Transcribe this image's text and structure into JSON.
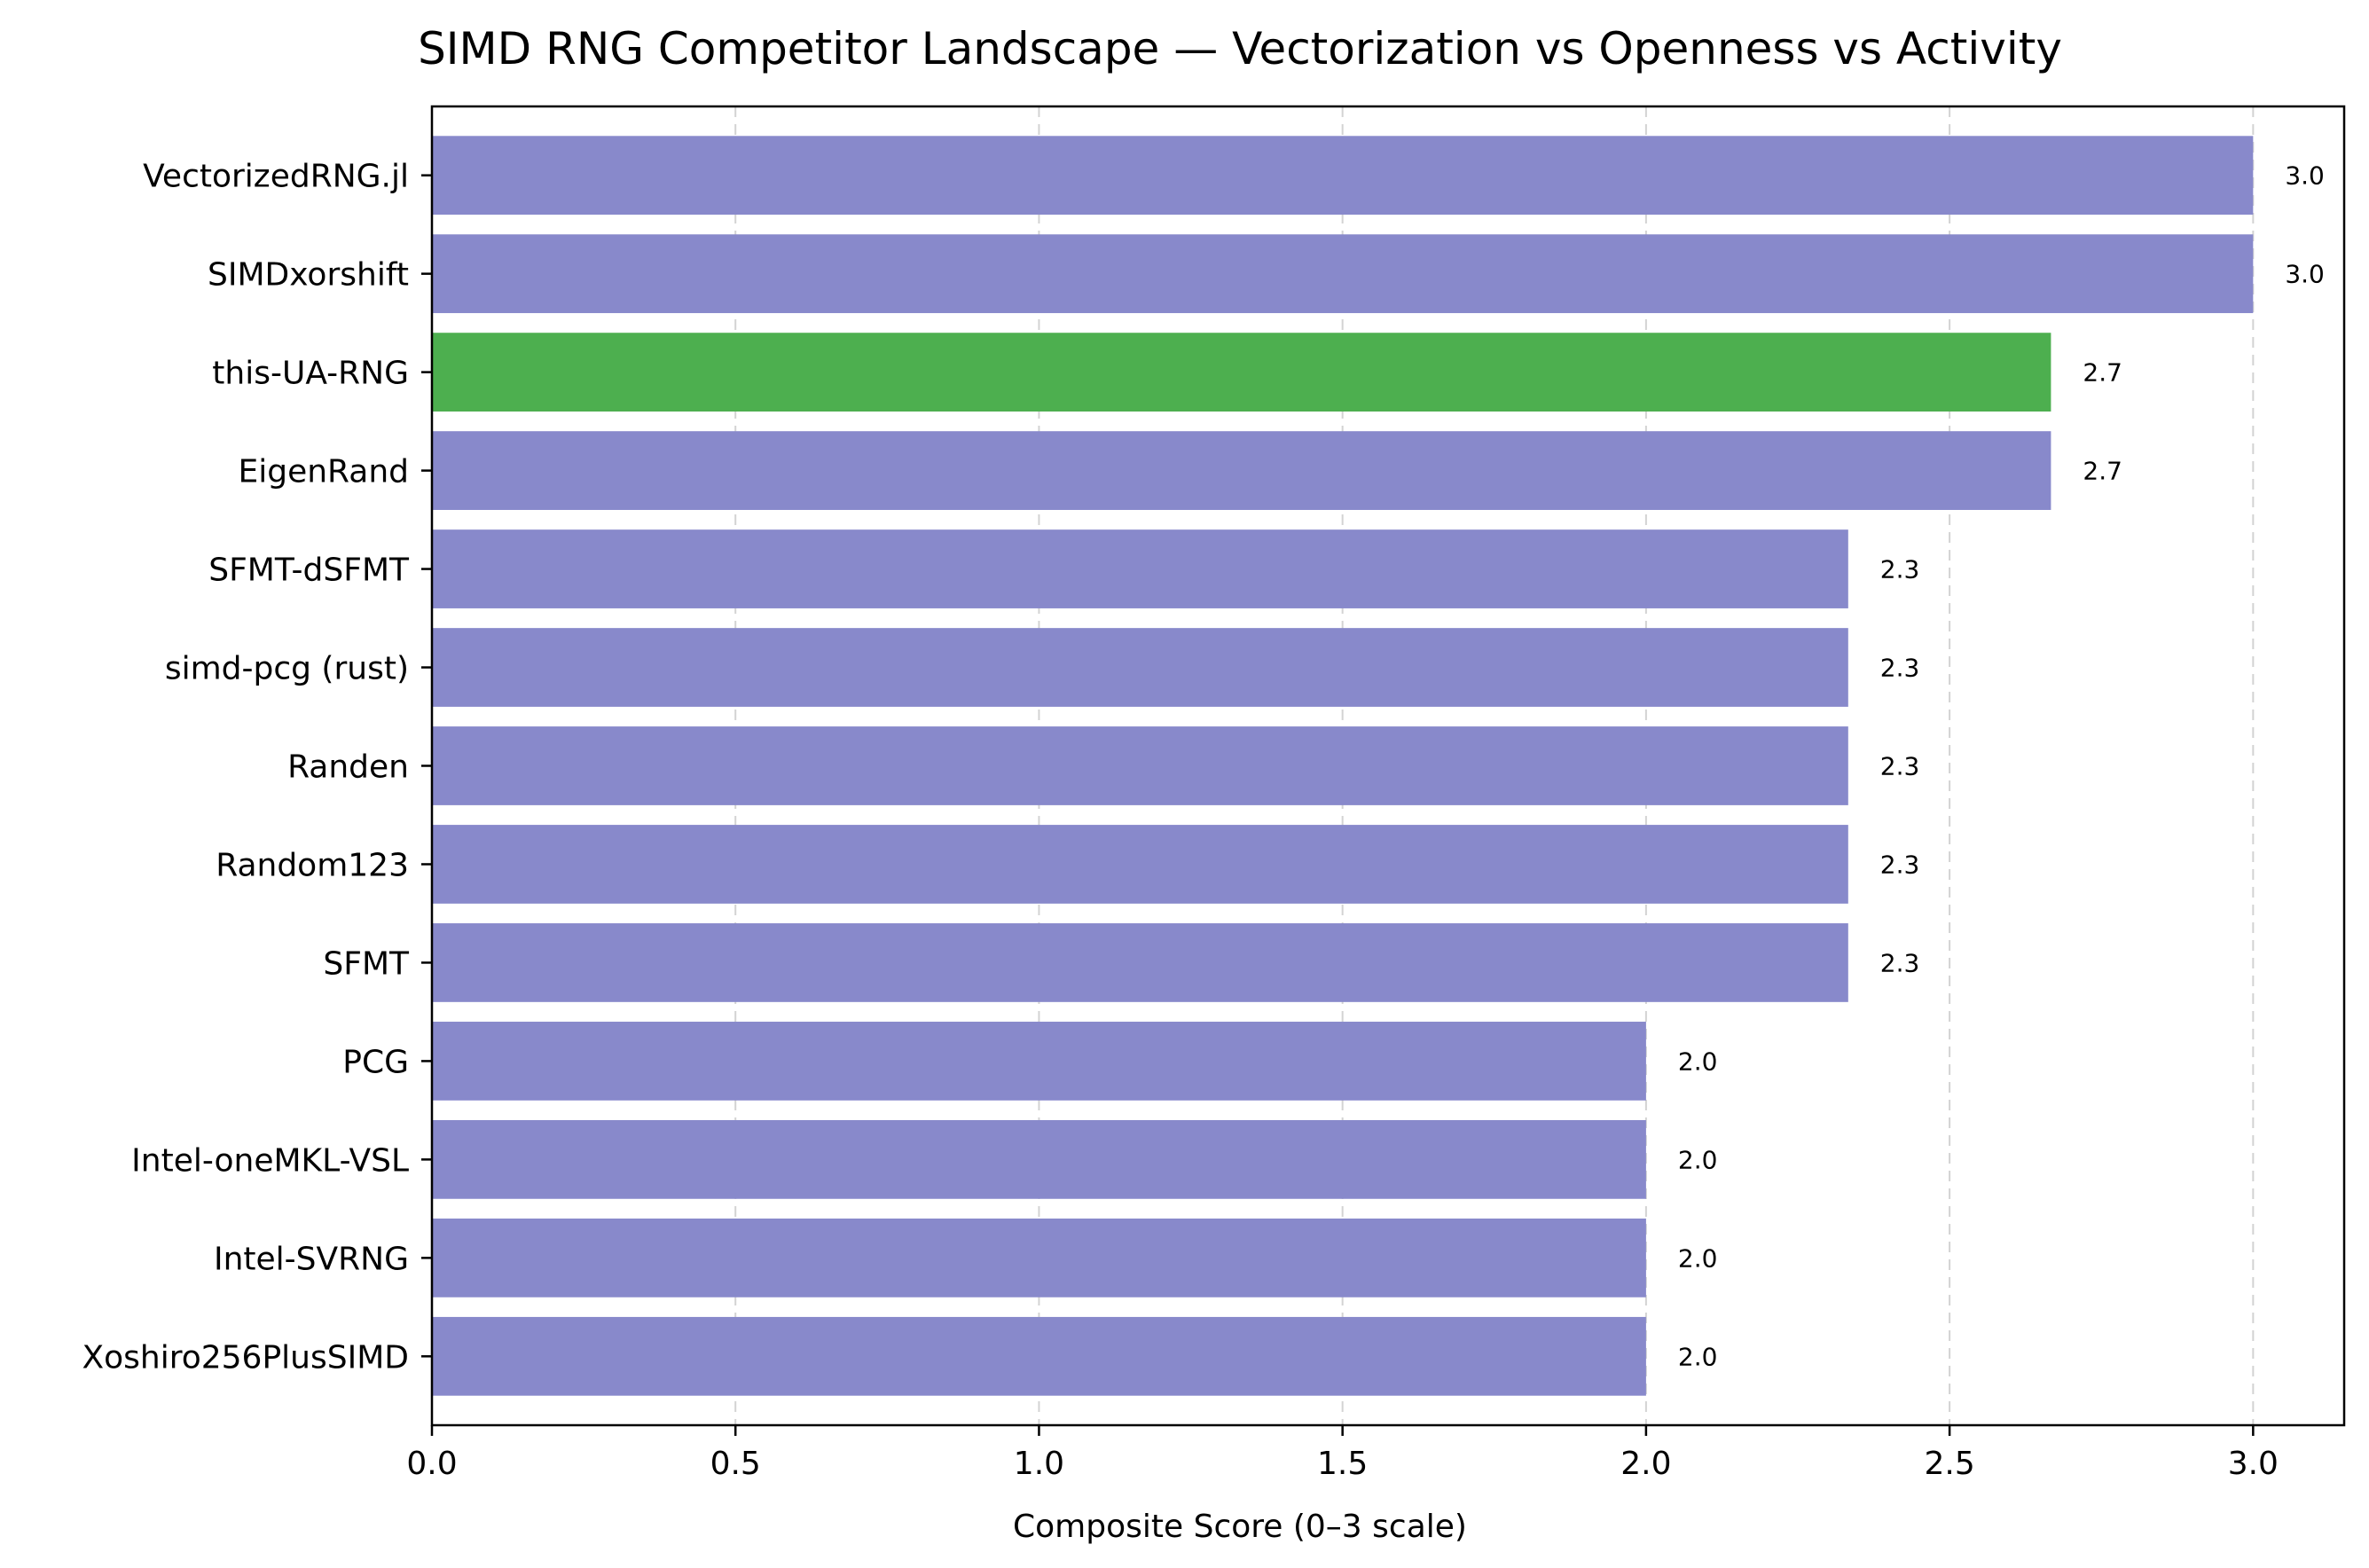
{
  "chart_data": {
    "type": "bar",
    "orientation": "horizontal",
    "title": "SIMD RNG Competitor Landscape — Vectorization vs Openness vs Activity",
    "xlabel": "Composite Score (0–3 scale)",
    "ylabel": "",
    "xlim": [
      0,
      3.15
    ],
    "xticks": [
      "0.0",
      "0.5",
      "1.0",
      "1.5",
      "2.0",
      "2.5",
      "3.0"
    ],
    "grid": "x-dashed",
    "categories": [
      "VectorizedRNG.jl",
      "SIMDxorshift",
      "this-UA-RNG",
      "EigenRand",
      "SFMT-dSFMT",
      "simd-pcg (rust)",
      "Randen",
      "Random123",
      "SFMT",
      "PCG",
      "Intel-oneMKL-VSL",
      "Intel-SVRNG",
      "Xoshiro256PlusSIMD"
    ],
    "values": [
      3.0,
      3.0,
      2.667,
      2.667,
      2.333,
      2.333,
      2.333,
      2.333,
      2.333,
      2.0,
      2.0,
      2.0,
      2.0
    ],
    "value_labels": [
      "3.0",
      "3.0",
      "2.7",
      "2.7",
      "2.3",
      "2.3",
      "2.3",
      "2.3",
      "2.3",
      "2.0",
      "2.0",
      "2.0",
      "2.0"
    ],
    "highlight": "this-UA-RNG",
    "colors": {
      "default": "#8889cb",
      "highlight": "#4daf4f"
    }
  }
}
